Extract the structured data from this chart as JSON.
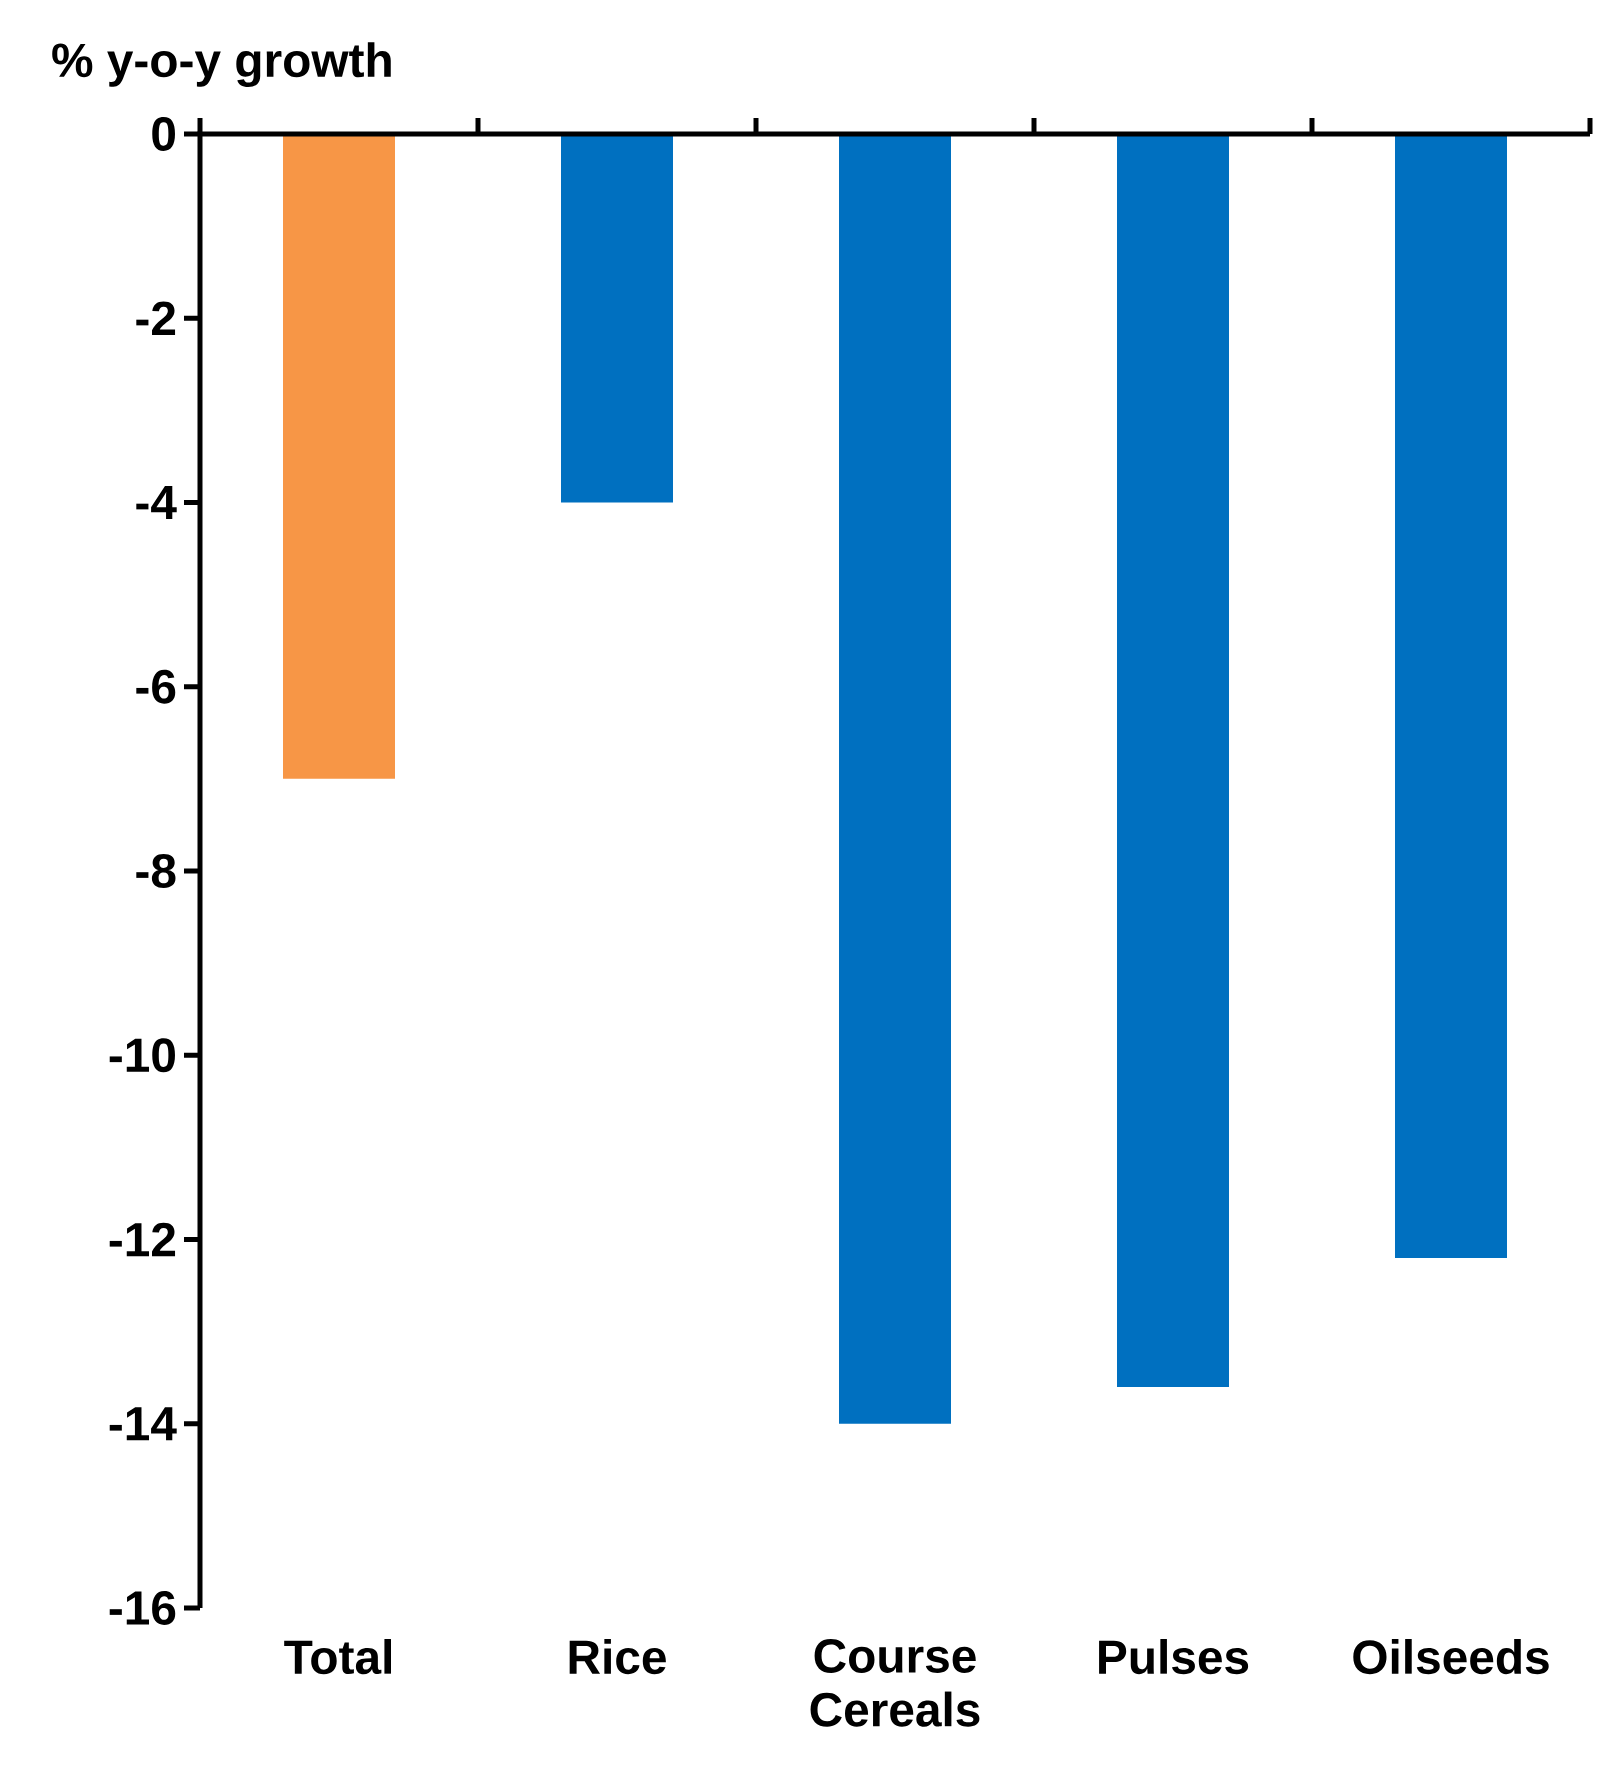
{
  "chart_data": {
    "type": "bar",
    "ylabel": "% y-o-y growth",
    "categories": [
      "Total",
      "Rice",
      "Course Cereals",
      "Pulses",
      "Oilseeds"
    ],
    "values": [
      -7.0,
      -4.0,
      -14.0,
      -13.6,
      -12.2
    ],
    "colors": [
      "#f79646",
      "#0070c0",
      "#0070c0",
      "#0070c0",
      "#0070c0"
    ],
    "ylim": [
      -16,
      0
    ],
    "yticks": [
      0,
      -2,
      -4,
      -6,
      -8,
      -10,
      -12,
      -14,
      -16
    ]
  }
}
